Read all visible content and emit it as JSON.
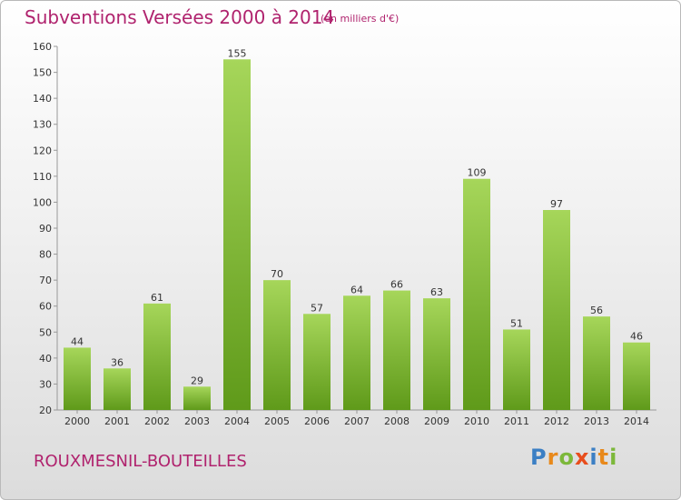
{
  "header": {
    "title": "Subventions Versées 2000 à 2014",
    "unit": "(en milliers d'€)"
  },
  "footer": {
    "commune": "ROUXMESNIL-BOUTEILLES",
    "logo": "Proxiti"
  },
  "colors": {
    "accent": "#b0236e",
    "bar_light": "#a6d65a",
    "bar_dark": "#5f9a1a"
  },
  "chart_data": {
    "type": "bar",
    "title": "Subventions Versées 2000 à 2014",
    "subtitle": "(en milliers d'€)",
    "xlabel": "",
    "ylabel": "",
    "categories": [
      "2000",
      "2001",
      "2002",
      "2003",
      "2004",
      "2005",
      "2006",
      "2007",
      "2008",
      "2009",
      "2010",
      "2011",
      "2012",
      "2013",
      "2014"
    ],
    "values": [
      44,
      36,
      61,
      29,
      155,
      70,
      57,
      64,
      66,
      63,
      109,
      51,
      97,
      56,
      46
    ],
    "ylim": [
      20,
      160
    ],
    "yticks": [
      20,
      30,
      40,
      50,
      60,
      70,
      80,
      90,
      100,
      110,
      120,
      130,
      140,
      150,
      160
    ],
    "grid": false,
    "legend": "none"
  }
}
